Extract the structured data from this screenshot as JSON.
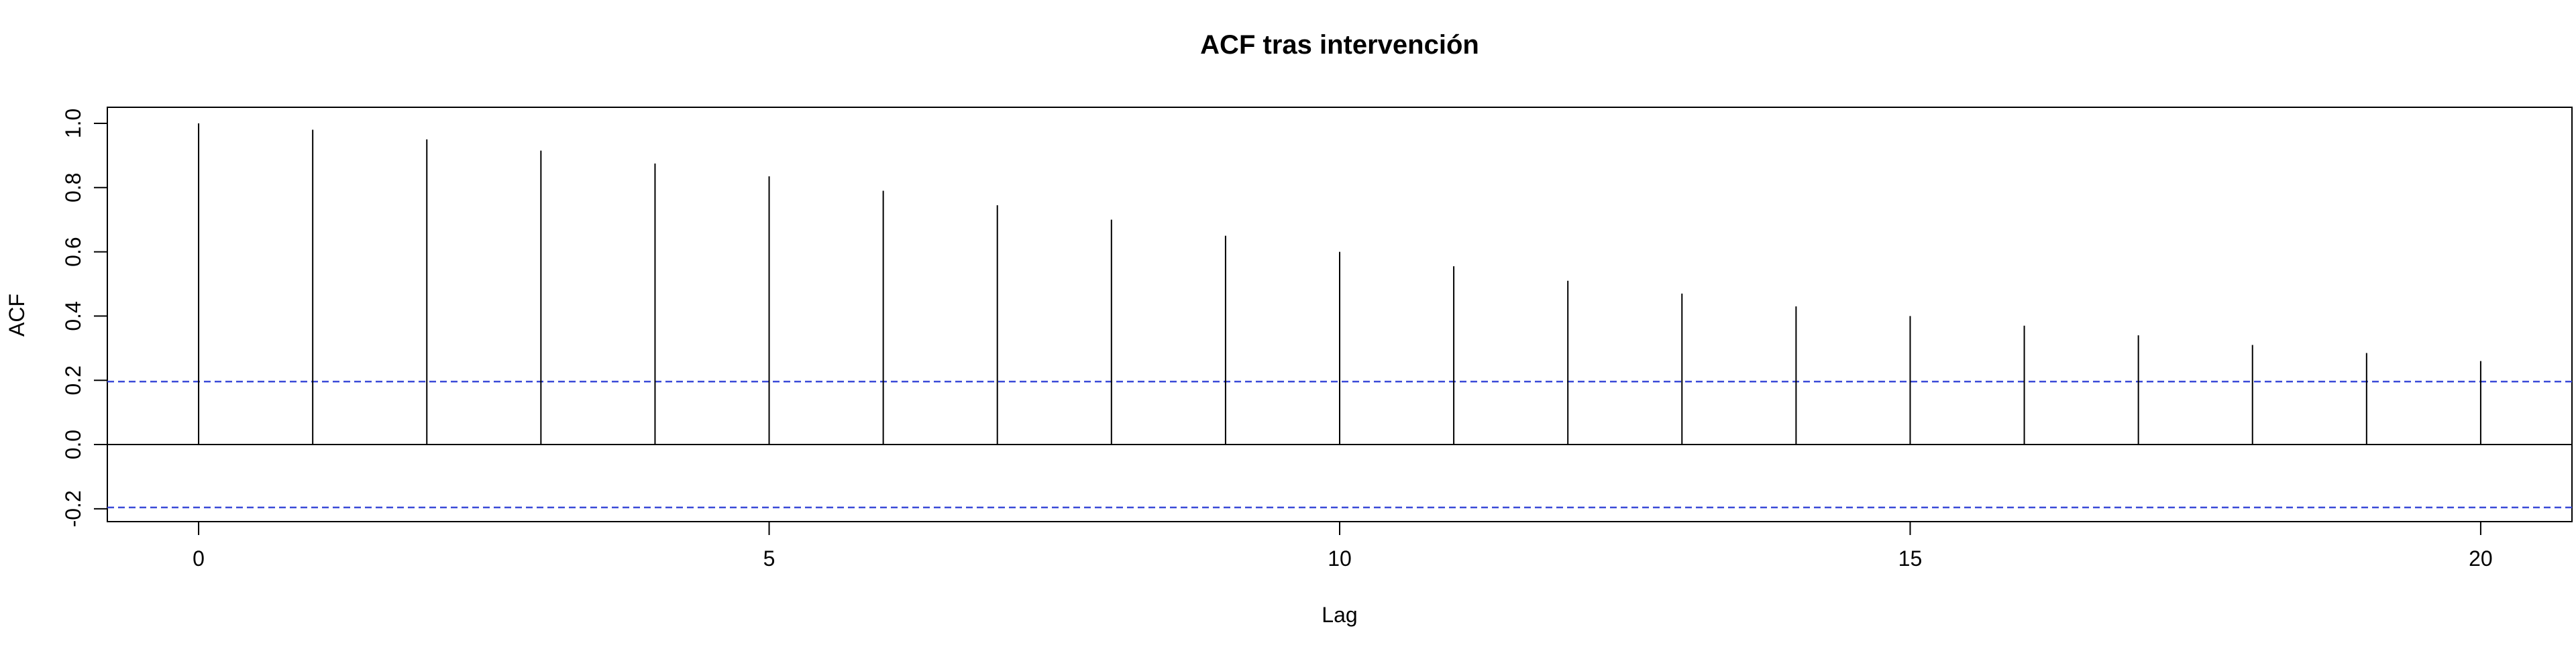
{
  "chart_data": {
    "type": "bar",
    "title": "ACF tras intervención",
    "xlabel": "Lag",
    "ylabel": "ACF",
    "x": [
      0,
      1,
      2,
      3,
      4,
      5,
      6,
      7,
      8,
      9,
      10,
      11,
      12,
      13,
      14,
      15,
      16,
      17,
      18,
      19,
      20
    ],
    "values": [
      1.0,
      0.98,
      0.95,
      0.915,
      0.875,
      0.835,
      0.79,
      0.745,
      0.7,
      0.65,
      0.6,
      0.555,
      0.51,
      0.47,
      0.43,
      0.4,
      0.37,
      0.34,
      0.31,
      0.285,
      0.26
    ],
    "xlim": [
      -0.8,
      20.8
    ],
    "ylim": [
      -0.24,
      1.05
    ],
    "xticks": [
      0,
      5,
      10,
      15,
      20
    ],
    "xtick_labels": [
      "0",
      "5",
      "10",
      "15",
      "20"
    ],
    "yticks": [
      -0.2,
      0.0,
      0.2,
      0.4,
      0.6,
      0.8,
      1.0
    ],
    "ytick_labels": [
      "-0.2",
      "0.0",
      "0.2",
      "0.4",
      "0.6",
      "0.8",
      "1.0"
    ],
    "confidence_bounds": [
      0.196,
      -0.196
    ],
    "grid": false,
    "colors": {
      "bars": "#000000",
      "zero_line": "#000000",
      "confidence_lines": "#3b4bd8",
      "axes": "#000000"
    }
  }
}
